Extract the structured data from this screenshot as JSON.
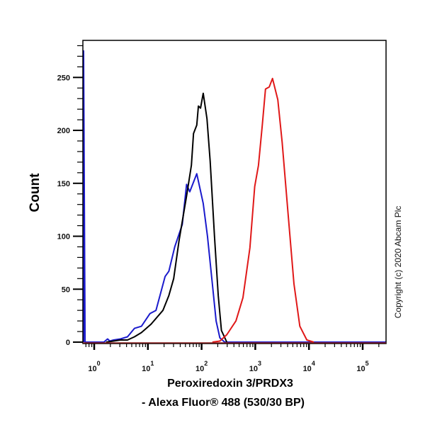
{
  "chart_data": {
    "type": "line",
    "title": "",
    "xlabel_line1": "Peroxiredoxin 3/PRDX3",
    "xlabel_line2": "- Alexa Fluor® 488 (530/30 BP)",
    "ylabel": "Count",
    "xscale": "log10 (biexponential display)",
    "xlim_log10": [
      -0.21,
      5.44
    ],
    "ylim": [
      0,
      285
    ],
    "yticks": [
      0,
      50,
      100,
      150,
      200,
      250
    ],
    "xticks": [
      {
        "base": "10",
        "exp": "0"
      },
      {
        "base": "10",
        "exp": "1"
      },
      {
        "base": "10",
        "exp": "2"
      },
      {
        "base": "10",
        "exp": "3"
      },
      {
        "base": "10",
        "exp": "4"
      },
      {
        "base": "10",
        "exp": "5"
      }
    ],
    "grid": false,
    "series": [
      {
        "name": "blue",
        "color": "#1a1acc",
        "x_log10": [
          -0.21,
          -0.2,
          -0.17,
          0.18,
          0.25,
          0.29,
          0.36,
          0.49,
          0.62,
          0.75,
          0.88,
          1.04,
          1.15,
          1.32,
          1.39,
          1.5,
          1.64,
          1.72,
          1.78,
          1.91,
          2.03,
          2.11,
          2.2,
          2.27,
          2.34,
          2.43,
          5.44
        ],
        "y": [
          0,
          275,
          0,
          0,
          3,
          1,
          2,
          3,
          5,
          13,
          15,
          27,
          30,
          62,
          67,
          90,
          111,
          149,
          142,
          159,
          131,
          100,
          55,
          20,
          4,
          0,
          0
        ]
      },
      {
        "name": "black",
        "color": "#000000",
        "x_log10": [
          0.22,
          0.36,
          0.49,
          0.62,
          0.75,
          0.88,
          1.06,
          1.28,
          1.39,
          1.48,
          1.58,
          1.72,
          1.81,
          1.85,
          1.91,
          1.94,
          1.98,
          2.03,
          2.1,
          2.16,
          2.24,
          2.31,
          2.37,
          2.47
        ],
        "y": [
          0,
          1,
          2,
          2,
          5,
          9,
          17,
          30,
          44,
          60,
          96,
          138,
          167,
          197,
          205,
          223,
          221,
          235,
          211,
          171,
          100,
          44,
          11,
          0
        ]
      },
      {
        "name": "red",
        "color": "#e01818",
        "x_log10": [
          2.2,
          2.34,
          2.47,
          2.64,
          2.77,
          2.9,
          2.99,
          3.06,
          3.13,
          3.19,
          3.26,
          3.32,
          3.42,
          3.5,
          3.61,
          3.72,
          3.83,
          3.96,
          4.09
        ],
        "y": [
          0,
          1,
          7,
          20,
          42,
          89,
          147,
          167,
          205,
          239,
          241,
          249,
          229,
          189,
          122,
          55,
          15,
          2,
          0
        ]
      }
    ]
  },
  "copyright": "Copyright (c) 2020 Abcam Plc"
}
